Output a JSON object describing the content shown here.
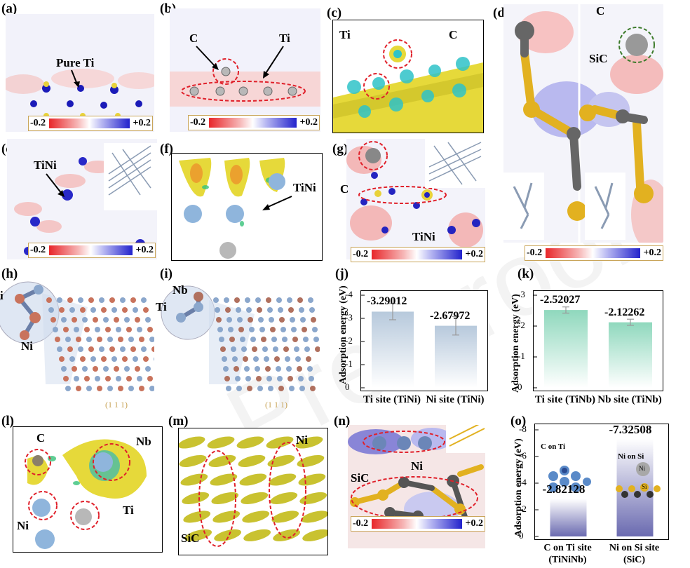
{
  "panels": {
    "a": {
      "tag": "(a)",
      "label": "Pure Ti",
      "scale_min": "-0.2",
      "scale_max": "+0.2"
    },
    "b": {
      "tag": "(b)",
      "label_c": "C",
      "label_ti": "Ti",
      "scale_min": "-0.2",
      "scale_max": "+0.2"
    },
    "c": {
      "tag": "(c)",
      "label_ti": "Ti",
      "label_c": "C"
    },
    "d": {
      "tag": "(d)",
      "label_c": "C",
      "label_sic": "SiC",
      "scale_min": "-0.2",
      "scale_max": "+0.2"
    },
    "e": {
      "tag": "(e)",
      "label": "TiNi",
      "scale_min": "-0.2",
      "scale_max": "+0.2"
    },
    "f": {
      "tag": "(f)",
      "label": "TiNi"
    },
    "g": {
      "tag": "(g)",
      "label_c": "C",
      "label_tini": "TiNi",
      "scale_min": "-0.2",
      "scale_max": "+0.2"
    },
    "h": {
      "tag": "(h)",
      "label_ti": "i",
      "label_ni": "Ni",
      "plane": "(1 1 1)"
    },
    "i": {
      "tag": "(i)",
      "label_nb": "Nb",
      "label_ti": "Ti",
      "plane": "(1 1 1)"
    },
    "l": {
      "tag": "(l)",
      "label_c": "C",
      "label_nb": "Nb",
      "label_ni": "Ni",
      "label_ti": "Ti"
    },
    "m": {
      "tag": "(m)",
      "label_ni": "Ni",
      "label_sic": "SiC"
    },
    "n": {
      "tag": "(n)",
      "label_ni": "Ni",
      "label_sic": "SiC",
      "scale_min": "-0.2",
      "scale_max": "+0.2"
    },
    "o_inset": {
      "c_on_ti": "C on Ti",
      "ni_on_si": "Ni on Si",
      "ni_atom": "Ni",
      "si_atom": "Si"
    }
  },
  "chart_data": [
    {
      "id": "j",
      "tag": "(j)",
      "type": "bar",
      "ylabel": "Adsorption energy (eV)",
      "ylim": [
        0,
        -4
      ],
      "yticks": [
        "-4",
        "-3",
        "-2",
        "-1",
        "0"
      ],
      "categories": [
        "Ti site (TiNi)",
        "Ni site (TiNi)"
      ],
      "values": [
        -3.29012,
        -2.67972
      ],
      "value_labels": [
        "-3.29012",
        "-2.67972"
      ],
      "errors": [
        0.35,
        0.4
      ],
      "colors": [
        "#b7c9dc",
        "#b7c9dc"
      ]
    },
    {
      "id": "k",
      "tag": "(k)",
      "type": "bar",
      "ylabel": "Adsorption energy (eV)",
      "ylim": [
        0,
        -3
      ],
      "yticks": [
        "-3",
        "-2",
        "-1",
        "0"
      ],
      "categories": [
        "Ti site (TiNb)",
        "Nb site (TiNb)"
      ],
      "values": [
        -2.52027,
        -2.12262
      ],
      "value_labels": [
        "-2.52027",
        "-2.12262"
      ],
      "errors": [
        0.1,
        0.1
      ],
      "colors": [
        "#8fd8bd",
        "#8fd8bd"
      ]
    },
    {
      "id": "o",
      "tag": "(o)",
      "type": "bar",
      "ylabel": "Adsorption energy (eV)",
      "ylim": [
        0,
        -8
      ],
      "yticks": [
        "-8",
        "-6",
        "-4",
        "-2",
        "0"
      ],
      "categories": [
        "C on Ti site (TiNiNb)",
        "Ni on Si site (SiC)"
      ],
      "cat_lines": [
        [
          "C on Ti site",
          "(TiNiNb)"
        ],
        [
          "Ni on Si site",
          "(SiC)"
        ]
      ],
      "values": [
        -2.82128,
        -7.32508
      ],
      "value_labels": [
        "-2.82128",
        "-7.32508"
      ],
      "colors": [
        "#6a6ab0",
        "#6a6ab0"
      ]
    }
  ]
}
